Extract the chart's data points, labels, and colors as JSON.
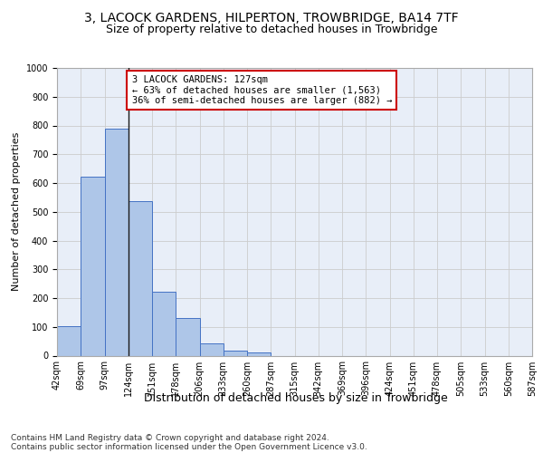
{
  "title": "3, LACOCK GARDENS, HILPERTON, TROWBRIDGE, BA14 7TF",
  "subtitle": "Size of property relative to detached houses in Trowbridge",
  "xlabel": "Distribution of detached houses by size in Trowbridge",
  "ylabel": "Number of detached properties",
  "bar_values": [
    103,
    622,
    788,
    537,
    222,
    132,
    42,
    16,
    12,
    0,
    0,
    0,
    0,
    0,
    0,
    0,
    0,
    0,
    0,
    0
  ],
  "bin_labels": [
    "42sqm",
    "69sqm",
    "97sqm",
    "124sqm",
    "151sqm",
    "178sqm",
    "206sqm",
    "233sqm",
    "260sqm",
    "287sqm",
    "315sqm",
    "342sqm",
    "369sqm",
    "396sqm",
    "424sqm",
    "451sqm",
    "478sqm",
    "505sqm",
    "533sqm",
    "560sqm",
    "587sqm"
  ],
  "bar_color": "#aec6e8",
  "bar_edge_color": "#4472c4",
  "annotation_text": "3 LACOCK GARDENS: 127sqm\n← 63% of detached houses are smaller (1,563)\n36% of semi-detached houses are larger (882) →",
  "annotation_box_color": "#ffffff",
  "annotation_box_edge_color": "#cc0000",
  "vline_color": "#1a1a1a",
  "vline_x": 3.0,
  "ylim": [
    0,
    1000
  ],
  "yticks": [
    0,
    100,
    200,
    300,
    400,
    500,
    600,
    700,
    800,
    900,
    1000
  ],
  "grid_color": "#cccccc",
  "bg_color": "#e8eef8",
  "footer_line1": "Contains HM Land Registry data © Crown copyright and database right 2024.",
  "footer_line2": "Contains public sector information licensed under the Open Government Licence v3.0.",
  "title_fontsize": 10,
  "subtitle_fontsize": 9,
  "ylabel_fontsize": 8,
  "xlabel_fontsize": 9,
  "tick_fontsize": 7,
  "annotation_fontsize": 7.5,
  "footer_fontsize": 6.5
}
